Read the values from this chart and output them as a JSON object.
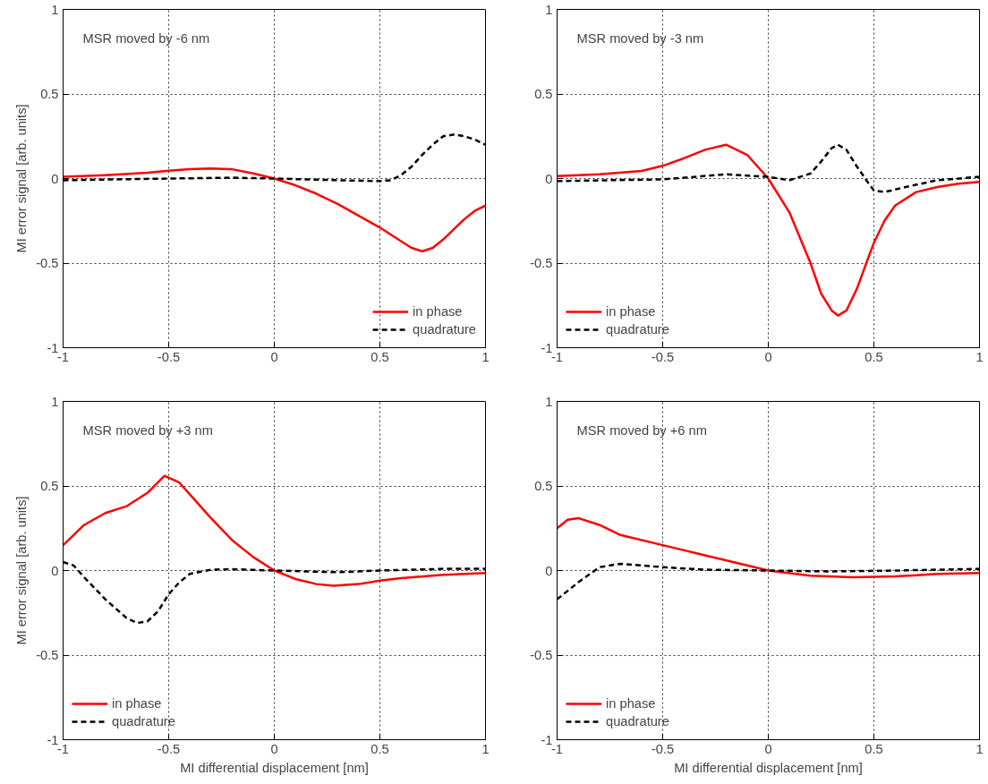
{
  "chart_data": [
    {
      "type": "line",
      "xlabel": null,
      "ylabel": "MI error signal [arb. units]",
      "annotations": [
        "MSR moved by -6 nm"
      ],
      "xlim": [
        -1,
        1
      ],
      "ylim": [
        -1,
        1
      ],
      "xticks": [
        -1,
        -0.5,
        0,
        0.5,
        1
      ],
      "yticks": [
        -1,
        -0.5,
        0,
        0.5,
        1
      ],
      "grid": true,
      "legend": "bottom right",
      "series": [
        {
          "name": "in phase",
          "color": "#ff0000",
          "line_style": "solid",
          "x": [
            -1,
            -0.8,
            -0.6,
            -0.5,
            -0.4,
            -0.3,
            -0.2,
            -0.1,
            0,
            0.1,
            0.2,
            0.3,
            0.4,
            0.5,
            0.6,
            0.65,
            0.7,
            0.75,
            0.8,
            0.85,
            0.9,
            0.95,
            1
          ],
          "values": [
            0.01,
            0.02,
            0.035,
            0.046,
            0.055,
            0.06,
            0.055,
            0.03,
            0,
            -0.04,
            -0.09,
            -0.15,
            -0.22,
            -0.29,
            -0.37,
            -0.41,
            -0.43,
            -0.41,
            -0.36,
            -0.3,
            -0.24,
            -0.19,
            -0.16
          ]
        },
        {
          "name": "quadrature",
          "color": "#000000",
          "line_style": "dashed",
          "x": [
            -1,
            -0.5,
            -0.2,
            0,
            0.3,
            0.5,
            0.55,
            0.6,
            0.65,
            0.7,
            0.75,
            0.8,
            0.85,
            0.9,
            0.95,
            1
          ],
          "values": [
            -0.01,
            0,
            0.005,
            0,
            -0.01,
            -0.015,
            -0.01,
            0.02,
            0.07,
            0.14,
            0.2,
            0.25,
            0.26,
            0.25,
            0.23,
            0.2
          ]
        }
      ]
    },
    {
      "type": "line",
      "annotations": [
        "MSR moved by -3 nm"
      ],
      "xlim": [
        -1,
        1
      ],
      "ylim": [
        -1,
        1
      ],
      "xticks": [
        -1,
        -0.5,
        0,
        0.5,
        1
      ],
      "yticks": [
        -1,
        -0.5,
        0,
        0.5,
        1
      ],
      "grid": true,
      "legend": "bottom left",
      "series": [
        {
          "name": "in phase",
          "color": "#ff0000",
          "line_style": "solid",
          "x": [
            -1,
            -0.8,
            -0.6,
            -0.5,
            -0.4,
            -0.3,
            -0.2,
            -0.1,
            0,
            0.1,
            0.15,
            0.2,
            0.25,
            0.3,
            0.33,
            0.37,
            0.42,
            0.47,
            0.5,
            0.55,
            0.6,
            0.7,
            0.8,
            0.9,
            1
          ],
          "values": [
            0.015,
            0.025,
            0.045,
            0.075,
            0.12,
            0.17,
            0.2,
            0.14,
            0,
            -0.2,
            -0.35,
            -0.5,
            -0.68,
            -0.78,
            -0.81,
            -0.78,
            -0.65,
            -0.48,
            -0.38,
            -0.25,
            -0.16,
            -0.08,
            -0.05,
            -0.03,
            -0.02
          ]
        },
        {
          "name": "quadrature",
          "color": "#000000",
          "line_style": "dashed",
          "x": [
            -1,
            -0.5,
            -0.2,
            0,
            0.1,
            0.2,
            0.25,
            0.3,
            0.33,
            0.37,
            0.42,
            0.47,
            0.5,
            0.55,
            0.65,
            0.8,
            1
          ],
          "values": [
            -0.015,
            -0.005,
            0.025,
            0.01,
            -0.01,
            0.03,
            0.1,
            0.18,
            0.2,
            0.17,
            0.07,
            -0.02,
            -0.07,
            -0.08,
            -0.05,
            -0.01,
            0.01
          ]
        }
      ]
    },
    {
      "type": "line",
      "xlabel": "MI differential displacement [nm]",
      "ylabel": "MI error signal [arb. units]",
      "annotations": [
        "MSR moved by +3 nm"
      ],
      "xlim": [
        -1,
        1
      ],
      "ylim": [
        -1,
        1
      ],
      "xticks": [
        -1,
        -0.5,
        0,
        0.5,
        1
      ],
      "yticks": [
        -1,
        -0.5,
        0,
        0.5,
        1
      ],
      "grid": true,
      "legend": "bottom left",
      "series": [
        {
          "name": "in phase",
          "color": "#ff0000",
          "line_style": "solid",
          "x": [
            -1,
            -0.9,
            -0.8,
            -0.7,
            -0.6,
            -0.52,
            -0.45,
            -0.4,
            -0.3,
            -0.2,
            -0.1,
            0,
            0.1,
            0.2,
            0.28,
            0.4,
            0.5,
            0.6,
            0.8,
            1
          ],
          "values": [
            0.15,
            0.27,
            0.34,
            0.38,
            0.46,
            0.56,
            0.52,
            0.45,
            0.31,
            0.18,
            0.08,
            0,
            -0.05,
            -0.08,
            -0.09,
            -0.08,
            -0.06,
            -0.045,
            -0.025,
            -0.015
          ]
        },
        {
          "name": "quadrature",
          "color": "#000000",
          "line_style": "dashed",
          "x": [
            -1,
            -0.95,
            -0.9,
            -0.8,
            -0.7,
            -0.65,
            -0.6,
            -0.55,
            -0.5,
            -0.45,
            -0.4,
            -0.3,
            -0.2,
            0,
            0.3,
            0.5,
            0.8,
            1
          ],
          "values": [
            0.05,
            0.03,
            -0.04,
            -0.17,
            -0.28,
            -0.31,
            -0.3,
            -0.24,
            -0.14,
            -0.07,
            -0.02,
            0.005,
            0.008,
            0,
            -0.01,
            0,
            0.01,
            0.01
          ]
        }
      ]
    },
    {
      "type": "line",
      "xlabel": "MI differential displacement [nm]",
      "annotations": [
        "MSR moved by +6 nm"
      ],
      "xlim": [
        -1,
        1
      ],
      "ylim": [
        -1,
        1
      ],
      "xticks": [
        -1,
        -0.5,
        0,
        0.5,
        1
      ],
      "yticks": [
        -1,
        -0.5,
        0,
        0.5,
        1
      ],
      "grid": true,
      "legend": "bottom left",
      "series": [
        {
          "name": "in phase",
          "color": "#ff0000",
          "line_style": "solid",
          "x": [
            -1,
            -0.95,
            -0.9,
            -0.8,
            -0.7,
            -0.5,
            -0.3,
            -0.1,
            0,
            0.2,
            0.4,
            0.6,
            0.8,
            1
          ],
          "values": [
            0.25,
            0.3,
            0.31,
            0.27,
            0.21,
            0.15,
            0.09,
            0.03,
            0,
            -0.03,
            -0.04,
            -0.035,
            -0.02,
            -0.015
          ]
        },
        {
          "name": "quadrature",
          "color": "#000000",
          "line_style": "dashed",
          "x": [
            -1,
            -0.9,
            -0.8,
            -0.7,
            -0.5,
            -0.3,
            0,
            0.3,
            0.6,
            1
          ],
          "values": [
            -0.17,
            -0.07,
            0.02,
            0.04,
            0.02,
            0.005,
            0,
            -0.005,
            0,
            0.01
          ]
        }
      ]
    }
  ]
}
